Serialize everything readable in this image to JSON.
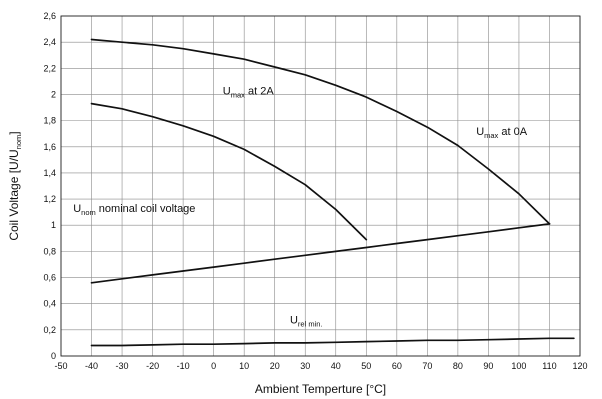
{
  "chart_data": {
    "type": "line",
    "title": "",
    "xlabel": "Ambient Temperture [°C]",
    "ylabel": {
      "main": "Coil Voltage [U/U",
      "sub": "nom",
      "close": "]"
    },
    "xlim": [
      -50,
      120
    ],
    "ylim": [
      0,
      2.6
    ],
    "x_ticks": [
      -50,
      -40,
      -30,
      -20,
      -10,
      0,
      10,
      20,
      30,
      40,
      50,
      60,
      70,
      80,
      90,
      100,
      110,
      120
    ],
    "y_ticks": [
      "0",
      "0,2",
      "0,4",
      "0,6",
      "0,8",
      "1",
      "1,2",
      "1,4",
      "1,6",
      "1,8",
      "2",
      "2,2",
      "2,4",
      "2,6"
    ],
    "y_tick_values": [
      0,
      0.2,
      0.4,
      0.6,
      0.8,
      1.0,
      1.2,
      1.4,
      1.6,
      1.8,
      2.0,
      2.2,
      2.4,
      2.6
    ],
    "grid": true,
    "series": [
      {
        "id": "umax-0a",
        "x": [
          -40,
          -30,
          -20,
          -10,
          0,
          10,
          20,
          30,
          40,
          50,
          60,
          70,
          80,
          90,
          100,
          110
        ],
        "y": [
          2.42,
          2.4,
          2.38,
          2.35,
          2.31,
          2.27,
          2.21,
          2.15,
          2.07,
          1.98,
          1.87,
          1.75,
          1.61,
          1.43,
          1.24,
          1.01
        ]
      },
      {
        "id": "umax-2a",
        "x": [
          -40,
          -30,
          -20,
          -10,
          0,
          10,
          20,
          30,
          40,
          50
        ],
        "y": [
          1.93,
          1.89,
          1.83,
          1.76,
          1.68,
          1.58,
          1.45,
          1.31,
          1.12,
          0.89
        ]
      },
      {
        "id": "unom",
        "x": [
          -40,
          -30,
          -20,
          -10,
          0,
          10,
          20,
          30,
          40,
          50,
          60,
          70,
          80,
          90,
          100,
          110
        ],
        "y": [
          0.56,
          0.59,
          0.62,
          0.65,
          0.68,
          0.71,
          0.74,
          0.77,
          0.8,
          0.83,
          0.86,
          0.89,
          0.92,
          0.95,
          0.98,
          1.01
        ]
      },
      {
        "id": "urel-min",
        "x": [
          -40,
          -30,
          -20,
          -10,
          0,
          10,
          20,
          30,
          40,
          50,
          60,
          70,
          80,
          90,
          100,
          110,
          118
        ],
        "y": [
          0.08,
          0.08,
          0.085,
          0.09,
          0.09,
          0.095,
          0.1,
          0.1,
          0.105,
          0.11,
          0.115,
          0.12,
          0.12,
          0.125,
          0.13,
          0.135,
          0.135
        ]
      }
    ],
    "annotations": [
      {
        "id": "label-umax-2a",
        "parts": [
          {
            "t": "U",
            "sub": false
          },
          {
            "t": "max",
            "sub": true
          },
          {
            "t": " at 2A",
            "sub": false
          }
        ],
        "x": 3,
        "y": 2.0
      },
      {
        "id": "label-umax-0a",
        "parts": [
          {
            "t": "U",
            "sub": false
          },
          {
            "t": "max",
            "sub": true
          },
          {
            "t": " at 0A",
            "sub": false
          }
        ],
        "x": 86,
        "y": 1.69
      },
      {
        "id": "label-unom",
        "parts": [
          {
            "t": "U",
            "sub": false
          },
          {
            "t": "nom",
            "sub": true
          },
          {
            "t": " nominal coil voltage",
            "sub": false
          }
        ],
        "x": -46,
        "y": 1.1
      },
      {
        "id": "label-urel-min",
        "parts": [
          {
            "t": "U",
            "sub": false
          },
          {
            "t": "rel min.",
            "sub": true
          }
        ],
        "x": 25,
        "y": 0.25
      }
    ]
  }
}
